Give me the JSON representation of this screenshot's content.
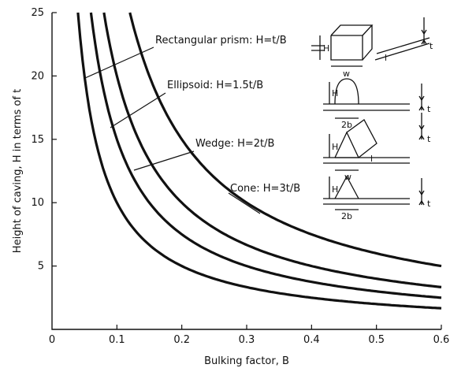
{
  "chart_data": {
    "type": "line",
    "title": "",
    "xlabel": "Bulking factor, B",
    "ylabel": "Height of caving, H in terms of t",
    "xlim": [
      0,
      0.6
    ],
    "ylim": [
      0,
      25
    ],
    "x_ticks": [
      "0",
      "0.1",
      "0.2",
      "0.3",
      "0.4",
      "0.5",
      "0.6"
    ],
    "y_ticks": [
      "5",
      "10",
      "15",
      "20",
      "25"
    ],
    "grid": false,
    "series": [
      {
        "name": "Rectangular prism: H=t/B",
        "k": 1.0,
        "label": "Rectangular prism: H=t/B",
        "x": [
          0.04,
          0.05,
          0.06,
          0.08,
          0.1,
          0.15,
          0.2,
          0.3,
          0.4,
          0.5,
          0.6
        ],
        "y": [
          25,
          20,
          16.67,
          12.5,
          10,
          6.67,
          5,
          3.33,
          2.5,
          2,
          1.67
        ]
      },
      {
        "name": "Ellipsoid: H=1.5t/B",
        "k": 1.5,
        "label": "Ellipsoid: H=1.5t/B",
        "x": [
          0.06,
          0.075,
          0.09,
          0.1,
          0.15,
          0.2,
          0.3,
          0.4,
          0.5,
          0.6
        ],
        "y": [
          25,
          20,
          16.67,
          15,
          10,
          7.5,
          5,
          3.75,
          3,
          2.5
        ]
      },
      {
        "name": "Wedge: H=2t/B",
        "k": 2.0,
        "label": "Wedge: H=2t/B",
        "x": [
          0.08,
          0.1,
          0.12,
          0.15,
          0.2,
          0.3,
          0.4,
          0.5,
          0.6
        ],
        "y": [
          25,
          20,
          16.67,
          13.33,
          10,
          6.67,
          5,
          4,
          3.33
        ]
      },
      {
        "name": "Cone: H=3t/B",
        "k": 3.0,
        "label": "Cone: H=3t/B",
        "x": [
          0.12,
          0.15,
          0.2,
          0.3,
          0.4,
          0.5,
          0.6
        ],
        "y": [
          25,
          20,
          15,
          10,
          7.5,
          6,
          5
        ]
      }
    ],
    "annotations": {
      "rect_label": "Rectangular prism: H=t/B",
      "ellipsoid_label": "Ellipsoid: H=1.5t/B",
      "wedge_label": "Wedge: H=2t/B",
      "cone_label": "Cone: H=3t/B"
    },
    "figures": [
      {
        "shape": "rectangular-prism",
        "labels": [
          "H",
          "w",
          "l",
          "t"
        ]
      },
      {
        "shape": "ellipsoid",
        "labels": [
          "H",
          "2b",
          "t"
        ]
      },
      {
        "shape": "wedge",
        "labels": [
          "H",
          "w",
          "l",
          "t"
        ]
      },
      {
        "shape": "cone",
        "labels": [
          "H",
          "2b",
          "t"
        ]
      }
    ]
  }
}
